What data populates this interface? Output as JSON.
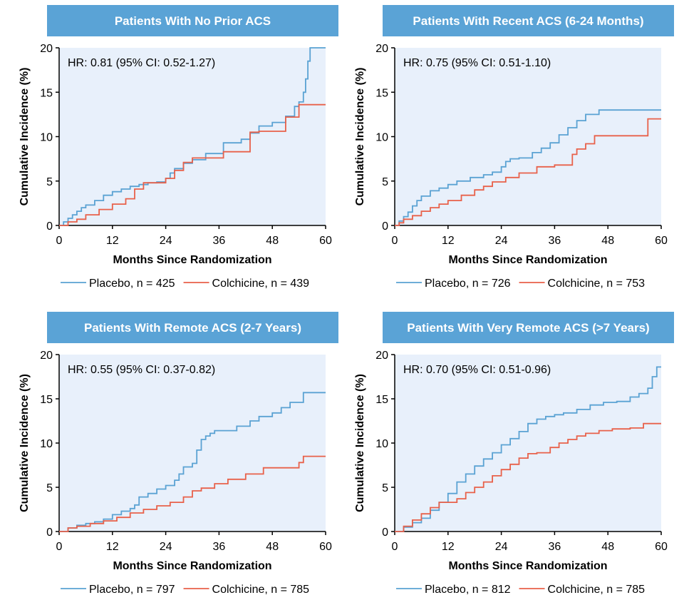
{
  "colors": {
    "banner": "#5aa3d6",
    "plot_background": "#e8f0fb",
    "placebo": "#5aa2d3",
    "colchicine": "#e8614a",
    "axis": "#000000"
  },
  "chart_data": [
    {
      "type": "line",
      "step": true,
      "title": "Patients With No Prior ACS",
      "annotation": "HR: 0.81 (95% CI: 0.52-1.27)",
      "xlabel": "Months Since Randomization",
      "ylabel": "Cumulative Incidence (%)",
      "xlim": [
        0,
        60
      ],
      "ylim": [
        0,
        20
      ],
      "xticks": [
        0,
        12,
        24,
        36,
        48,
        60
      ],
      "yticks": [
        0,
        5,
        10,
        15,
        20
      ],
      "legend": [
        "Placebo, n = 425",
        "Colchicine, n = 439"
      ],
      "series": [
        {
          "name": "Placebo",
          "x": [
            0,
            1,
            2,
            3,
            4,
            5,
            6,
            8,
            10,
            12,
            14,
            16,
            18,
            20,
            22,
            24,
            25,
            26,
            28,
            30,
            33,
            37,
            41,
            43,
            45,
            48,
            51,
            53,
            54,
            55,
            55.5,
            56,
            56.5,
            60
          ],
          "y": [
            0,
            0.4,
            0.8,
            1.2,
            1.6,
            2.0,
            2.3,
            2.8,
            3.4,
            3.8,
            4.1,
            4.4,
            4.6,
            4.8,
            4.9,
            5.3,
            5.9,
            6.4,
            7.0,
            7.4,
            8.1,
            9.3,
            9.7,
            10.4,
            11.2,
            11.6,
            12.3,
            13.4,
            13.9,
            15.0,
            16.5,
            18.5,
            20.0,
            20.0
          ]
        },
        {
          "name": "Colchicine",
          "x": [
            0,
            2,
            4,
            6,
            9,
            12,
            15,
            17,
            19,
            22,
            24,
            26,
            28,
            30,
            37,
            43,
            45,
            51,
            54,
            60
          ],
          "y": [
            0,
            0.4,
            0.7,
            1.2,
            1.8,
            2.4,
            3.0,
            4.1,
            4.8,
            4.8,
            5.3,
            6.2,
            7.1,
            7.6,
            8.3,
            10.5,
            10.6,
            12.2,
            13.6,
            13.6
          ]
        }
      ]
    },
    {
      "type": "line",
      "step": true,
      "title": "Patients With Recent ACS (6-24 Months)",
      "annotation": "HR: 0.75 (95% CI: 0.51-1.10)",
      "xlabel": "Months Since Randomization",
      "ylabel": "Cumulative Incidence (%)",
      "xlim": [
        0,
        60
      ],
      "ylim": [
        0,
        20
      ],
      "xticks": [
        0,
        12,
        24,
        36,
        48,
        60
      ],
      "yticks": [
        0,
        5,
        10,
        15,
        20
      ],
      "legend": [
        "Placebo, n = 726",
        "Colchicine, n = 753"
      ],
      "series": [
        {
          "name": "Placebo",
          "x": [
            0,
            1,
            2,
            3,
            4,
            5,
            6,
            8,
            10,
            12,
            14,
            17,
            20,
            22,
            24,
            25,
            26,
            28,
            31,
            33,
            35,
            37,
            39,
            41,
            43,
            46,
            60
          ],
          "y": [
            0,
            0.5,
            1.0,
            1.5,
            2.2,
            2.8,
            3.3,
            3.9,
            4.2,
            4.6,
            5.0,
            5.4,
            5.7,
            6.0,
            6.6,
            7.2,
            7.5,
            7.6,
            8.2,
            8.7,
            9.3,
            10.2,
            11.0,
            11.8,
            12.5,
            13.0,
            13.0
          ]
        },
        {
          "name": "Colchicine",
          "x": [
            0,
            1,
            2,
            4,
            6,
            8,
            10,
            12,
            15,
            18,
            20,
            22,
            25,
            28,
            32,
            36,
            39,
            40,
            41,
            43,
            45,
            56,
            57,
            60
          ],
          "y": [
            0,
            0.3,
            0.7,
            1.1,
            1.6,
            2.0,
            2.4,
            2.8,
            3.4,
            4.0,
            4.4,
            4.9,
            5.4,
            5.9,
            6.6,
            6.8,
            6.8,
            8.0,
            8.6,
            9.2,
            10.1,
            10.1,
            12.0,
            12.0
          ]
        }
      ]
    },
    {
      "type": "line",
      "step": true,
      "title": "Patients With Remote ACS (2-7 Years)",
      "annotation": "HR: 0.55 (95% CI: 0.37-0.82)",
      "xlabel": "Months Since Randomization",
      "ylabel": "Cumulative Incidence (%)",
      "xlim": [
        0,
        60
      ],
      "ylim": [
        0,
        20
      ],
      "xticks": [
        0,
        12,
        24,
        36,
        48,
        60
      ],
      "yticks": [
        0,
        5,
        10,
        15,
        20
      ],
      "legend": [
        "Placebo, n = 797",
        "Colchicine, n = 785"
      ],
      "series": [
        {
          "name": "Placebo",
          "x": [
            0,
            2,
            4,
            6,
            8,
            10,
            12,
            14,
            16,
            17,
            18,
            20,
            22,
            24,
            26,
            27,
            28,
            30,
            31,
            32,
            33,
            34,
            35,
            37,
            40,
            43,
            45,
            48,
            50,
            52,
            55,
            60
          ],
          "y": [
            0,
            0.4,
            0.7,
            0.9,
            1.1,
            1.4,
            1.9,
            2.3,
            2.6,
            3.0,
            3.9,
            4.3,
            4.8,
            5.2,
            5.8,
            6.5,
            7.3,
            7.7,
            9.2,
            10.4,
            10.8,
            11.1,
            11.4,
            11.4,
            11.9,
            12.5,
            13.0,
            13.4,
            14.0,
            14.6,
            15.7,
            15.7
          ]
        },
        {
          "name": "Colchicine",
          "x": [
            0,
            2,
            4,
            7,
            10,
            13,
            16,
            19,
            22,
            25,
            28,
            30,
            32,
            35,
            38,
            42,
            46,
            54,
            55,
            60
          ],
          "y": [
            0,
            0.4,
            0.6,
            0.9,
            1.2,
            1.6,
            2.1,
            2.5,
            2.9,
            3.3,
            3.9,
            4.6,
            4.9,
            5.4,
            5.9,
            6.5,
            7.2,
            7.8,
            8.5,
            8.5
          ]
        }
      ]
    },
    {
      "type": "line",
      "step": true,
      "title": "Patients With Very Remote ACS (>7 Years)",
      "annotation": "HR: 0.70 (95% CI: 0.51-0.96)",
      "xlabel": "Months Since Randomization",
      "ylabel": "Cumulative Incidence (%)",
      "xlim": [
        0,
        60
      ],
      "ylim": [
        0,
        20
      ],
      "xticks": [
        0,
        12,
        24,
        36,
        48,
        60
      ],
      "yticks": [
        0,
        5,
        10,
        15,
        20
      ],
      "legend": [
        "Placebo, n = 812",
        "Colchicine, n = 785"
      ],
      "series": [
        {
          "name": "Placebo",
          "x": [
            0,
            2,
            4,
            6,
            8,
            10,
            12,
            14,
            16,
            18,
            20,
            22,
            24,
            26,
            28,
            30,
            32,
            34,
            36,
            38,
            41,
            44,
            47,
            50,
            53,
            55,
            57,
            58,
            59,
            60
          ],
          "y": [
            0,
            0.5,
            1.0,
            1.5,
            2.4,
            3.3,
            4.3,
            5.6,
            6.5,
            7.4,
            8.2,
            8.9,
            9.8,
            10.5,
            11.3,
            12.2,
            12.7,
            13.0,
            13.2,
            13.4,
            13.8,
            14.3,
            14.6,
            14.7,
            15.2,
            15.6,
            16.2,
            17.5,
            18.6,
            18.6
          ]
        },
        {
          "name": "Colchicine",
          "x": [
            0,
            2,
            4,
            6,
            8,
            10,
            14,
            16,
            18,
            20,
            22,
            24,
            26,
            28,
            30,
            32,
            35,
            37,
            39,
            41,
            43,
            46,
            49,
            53,
            56,
            60
          ],
          "y": [
            0,
            0.6,
            1.3,
            2.0,
            2.7,
            3.3,
            3.7,
            4.4,
            5.0,
            5.6,
            6.3,
            7.0,
            7.6,
            8.3,
            8.8,
            8.9,
            9.5,
            10.0,
            10.4,
            10.8,
            11.1,
            11.4,
            11.6,
            11.7,
            12.2,
            12.2
          ]
        }
      ]
    }
  ]
}
